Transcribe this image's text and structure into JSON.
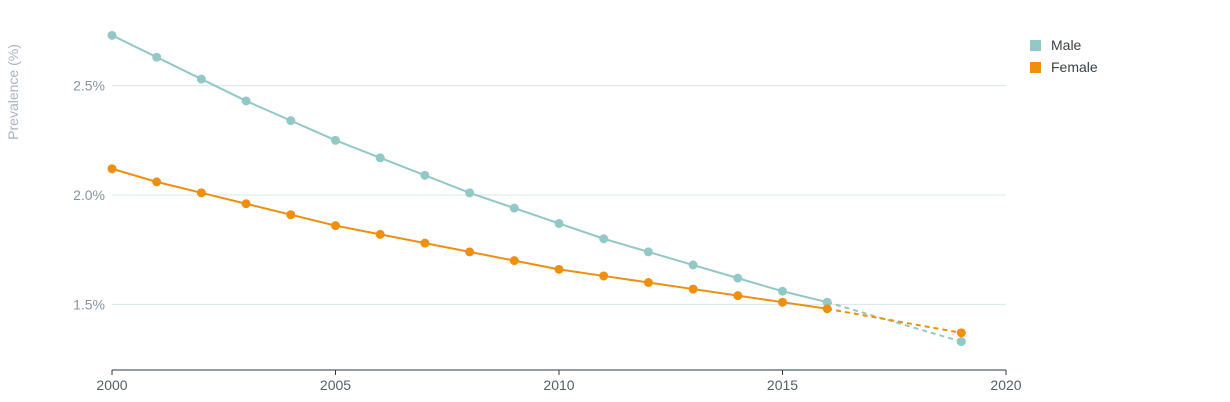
{
  "chart_data": {
    "type": "line",
    "ylabel": "Prevalence (%)",
    "xlabel": "",
    "xlim": [
      2000,
      2020
    ],
    "ylim": [
      1.2,
      2.8
    ],
    "x_ticks": [
      2000,
      2005,
      2010,
      2015,
      2020
    ],
    "y_ticks": [
      1.5,
      2.0,
      2.5
    ],
    "y_tick_labels": [
      "1.5%",
      "2.0%",
      "2.5%"
    ],
    "grid": true,
    "legend_position": "top-right",
    "series": [
      {
        "name": "Male",
        "color": "#92c8c5",
        "x": [
          2000,
          2001,
          2002,
          2003,
          2004,
          2005,
          2006,
          2007,
          2008,
          2009,
          2010,
          2011,
          2012,
          2013,
          2014,
          2015,
          2016
        ],
        "values": [
          2.73,
          2.63,
          2.53,
          2.43,
          2.34,
          2.25,
          2.17,
          2.09,
          2.01,
          1.94,
          1.87,
          1.8,
          1.74,
          1.68,
          1.62,
          1.56,
          1.51
        ],
        "projection": {
          "x": [
            2016,
            2019
          ],
          "values": [
            1.51,
            1.33
          ]
        }
      },
      {
        "name": "Female",
        "color": "#ee8f0f",
        "x": [
          2000,
          2001,
          2002,
          2003,
          2004,
          2005,
          2006,
          2007,
          2008,
          2009,
          2010,
          2011,
          2012,
          2013,
          2014,
          2015,
          2016
        ],
        "values": [
          2.12,
          2.06,
          2.01,
          1.96,
          1.91,
          1.86,
          1.82,
          1.78,
          1.74,
          1.7,
          1.66,
          1.63,
          1.6,
          1.57,
          1.54,
          1.51,
          1.48
        ],
        "projection": {
          "x": [
            2016,
            2019
          ],
          "values": [
            1.48,
            1.37
          ]
        }
      }
    ]
  }
}
